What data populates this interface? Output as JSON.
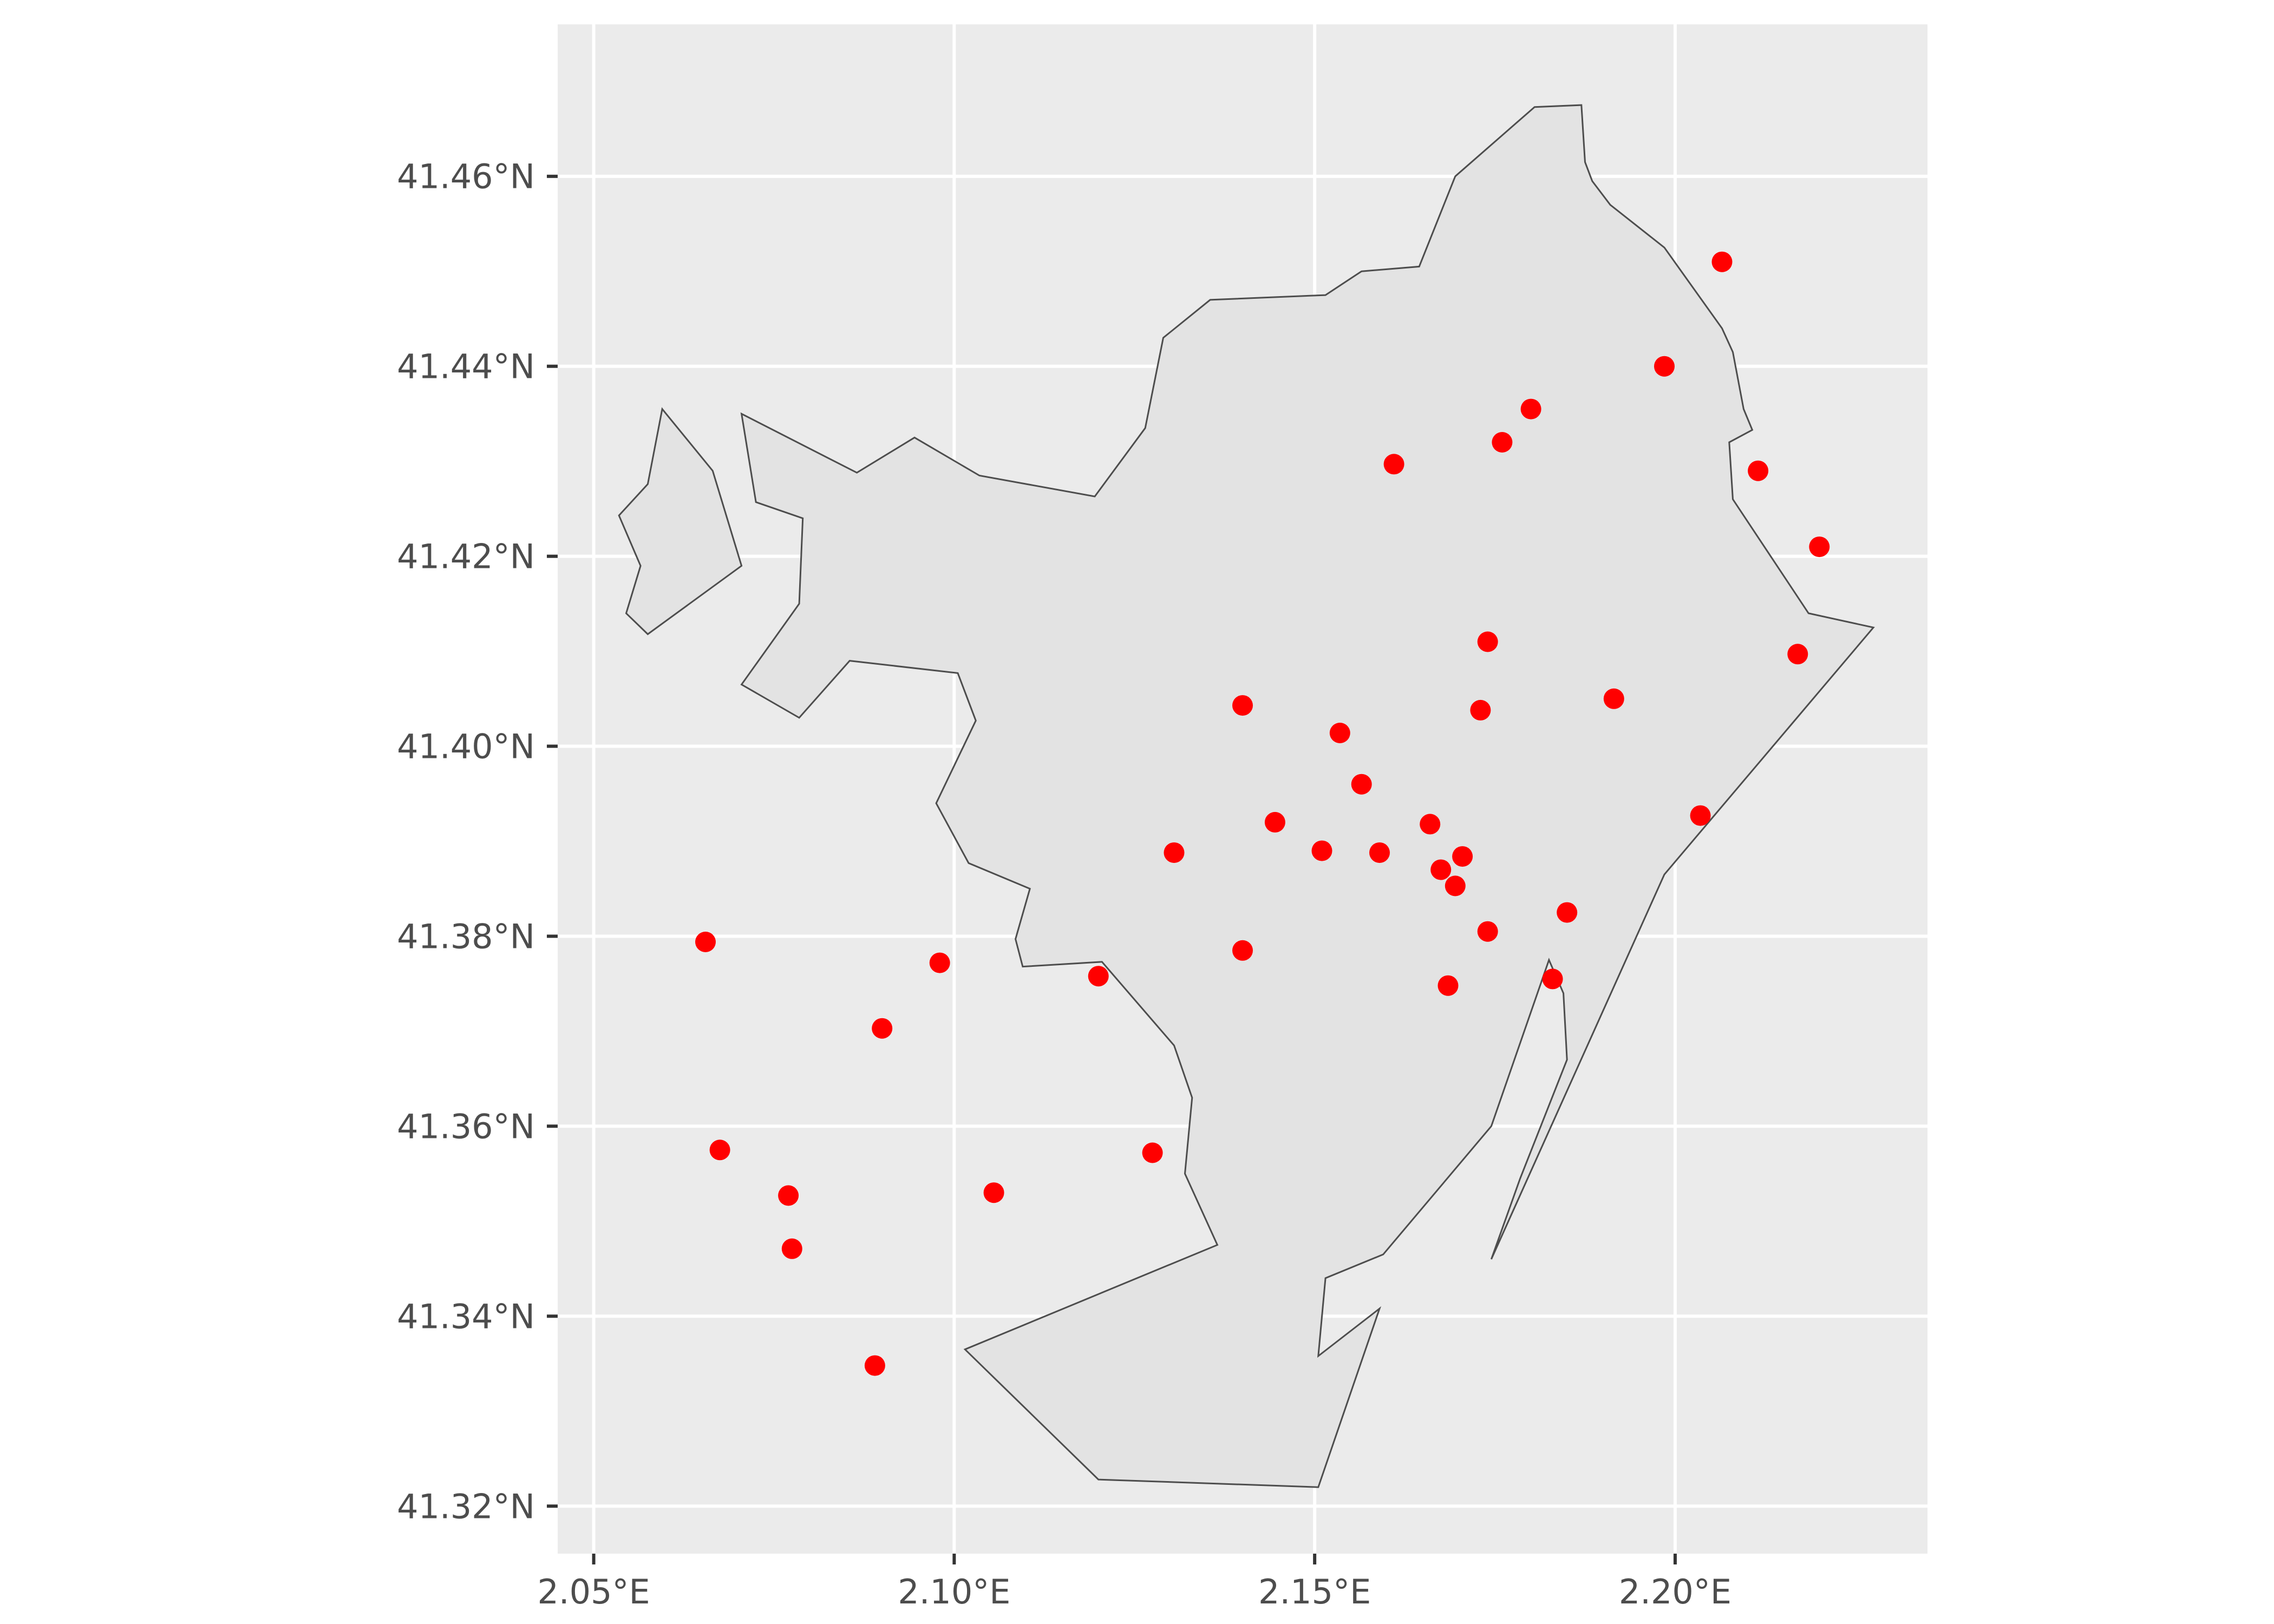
{
  "chart_data": {
    "type": "scatter",
    "title": "",
    "xlabel": "",
    "ylabel": "",
    "xlim": [
      2.045,
      2.235
    ],
    "ylim": [
      41.315,
      41.476
    ],
    "grid": true,
    "colors": {
      "panel": "#ebebeb",
      "grid": "#ffffff",
      "polygon_fill": "#e3e3e3",
      "polygon_stroke": "#4d4d4d",
      "points": "#ff0000",
      "tick_label": "#4d4d4d"
    },
    "x_ticks": [
      {
        "value": 2.05,
        "label": "2.05°E"
      },
      {
        "value": 2.1,
        "label": "2.10°E"
      },
      {
        "value": 2.15,
        "label": "2.15°E"
      },
      {
        "value": 2.2,
        "label": "2.20°E"
      }
    ],
    "y_ticks": [
      {
        "value": 41.32,
        "label": "41.32°N"
      },
      {
        "value": 41.34,
        "label": "41.34°N"
      },
      {
        "value": 41.36,
        "label": "41.36°N"
      },
      {
        "value": 41.38,
        "label": "41.38°N"
      },
      {
        "value": 41.4,
        "label": "41.40°N"
      },
      {
        "value": 41.42,
        "label": "41.42°N"
      },
      {
        "value": 41.44,
        "label": "41.44°N"
      },
      {
        "value": 41.46,
        "label": "41.46°N"
      }
    ],
    "polygons": [
      [
        [
          2.187,
          41.4675
        ],
        [
          2.1875,
          41.4615
        ],
        [
          2.1885,
          41.4595
        ],
        [
          2.191,
          41.457
        ],
        [
          2.1985,
          41.4525
        ],
        [
          2.2065,
          41.444
        ],
        [
          2.208,
          41.4415
        ],
        [
          2.2095,
          41.4355
        ],
        [
          2.2107,
          41.4333
        ],
        [
          2.2075,
          41.432
        ],
        [
          2.208,
          41.426
        ],
        [
          2.2185,
          41.414
        ],
        [
          2.2275,
          41.4125
        ],
        [
          2.1985,
          41.3865
        ],
        [
          2.1745,
          41.346
        ],
        [
          2.1785,
          41.3545
        ],
        [
          2.185,
          41.367
        ],
        [
          2.1845,
          41.374
        ],
        [
          2.1825,
          41.3775
        ],
        [
          2.1745,
          41.36
        ],
        [
          2.1595,
          41.3465
        ],
        [
          2.1515,
          41.344
        ],
        [
          2.1505,
          41.3358
        ],
        [
          2.159,
          41.3408
        ],
        [
          2.1505,
          41.322
        ],
        [
          2.12,
          41.3228
        ],
        [
          2.1015,
          41.3365
        ],
        [
          2.1365,
          41.3475
        ],
        [
          2.132,
          41.355
        ],
        [
          2.133,
          41.363
        ],
        [
          2.1305,
          41.3685
        ],
        [
          2.1205,
          41.3773
        ],
        [
          2.1095,
          41.3768
        ],
        [
          2.1085,
          41.3797
        ],
        [
          2.1105,
          41.385
        ],
        [
          2.102,
          41.3877
        ],
        [
          2.0975,
          41.394
        ],
        [
          2.103,
          41.4027
        ],
        [
          2.1005,
          41.4077
        ],
        [
          2.0855,
          41.409
        ],
        [
          2.0785,
          41.403
        ],
        [
          2.0705,
          41.4065
        ],
        [
          2.0785,
          41.415
        ],
        [
          2.079,
          41.424
        ],
        [
          2.0725,
          41.4257
        ],
        [
          2.0705,
          41.435
        ],
        [
          2.0865,
          41.4288
        ],
        [
          2.0945,
          41.4325
        ],
        [
          2.1035,
          41.4285
        ],
        [
          2.1195,
          41.4263
        ],
        [
          2.1265,
          41.4335
        ],
        [
          2.129,
          41.443
        ],
        [
          2.1355,
          41.447
        ],
        [
          2.1515,
          41.4475
        ],
        [
          2.1565,
          41.45
        ],
        [
          2.1645,
          41.4505
        ],
        [
          2.1695,
          41.46
        ],
        [
          2.1805,
          41.4673
        ]
      ],
      [
        [
          2.0595,
          41.4355
        ],
        [
          2.0665,
          41.429
        ],
        [
          2.0705,
          41.419
        ],
        [
          2.0575,
          41.4118
        ],
        [
          2.0545,
          41.414
        ],
        [
          2.0565,
          41.419
        ],
        [
          2.0535,
          41.4243
        ],
        [
          2.0575,
          41.4276
        ]
      ]
    ],
    "points": [
      [
        2.2065,
        41.451
      ],
      [
        2.1985,
        41.44
      ],
      [
        2.18,
        41.4355
      ],
      [
        2.176,
        41.432
      ],
      [
        2.161,
        41.4297
      ],
      [
        2.2115,
        41.429
      ],
      [
        2.22,
        41.421
      ],
      [
        2.174,
        41.411
      ],
      [
        2.217,
        41.4097
      ],
      [
        2.1915,
        41.405
      ],
      [
        2.14,
        41.4043
      ],
      [
        2.173,
        41.4038
      ],
      [
        2.1535,
        41.4014
      ],
      [
        2.1565,
        41.396
      ],
      [
        2.2035,
        41.3927
      ],
      [
        2.1445,
        41.392
      ],
      [
        2.166,
        41.3918
      ],
      [
        2.1305,
        41.3888
      ],
      [
        2.151,
        41.389
      ],
      [
        2.159,
        41.3888
      ],
      [
        2.1705,
        41.3884
      ],
      [
        2.1675,
        41.387
      ],
      [
        2.1695,
        41.3853
      ],
      [
        2.185,
        41.3825
      ],
      [
        2.174,
        41.3805
      ],
      [
        2.0655,
        41.3794
      ],
      [
        2.14,
        41.3785
      ],
      [
        2.098,
        41.3772
      ],
      [
        2.12,
        41.3758
      ],
      [
        2.183,
        41.3755
      ],
      [
        2.1685,
        41.3748
      ],
      [
        2.09,
        41.3703
      ],
      [
        2.0675,
        41.3575
      ],
      [
        2.1275,
        41.3572
      ],
      [
        2.077,
        41.3527
      ],
      [
        2.1055,
        41.353
      ],
      [
        2.0775,
        41.3471
      ],
      [
        2.089,
        41.3348
      ]
    ]
  }
}
